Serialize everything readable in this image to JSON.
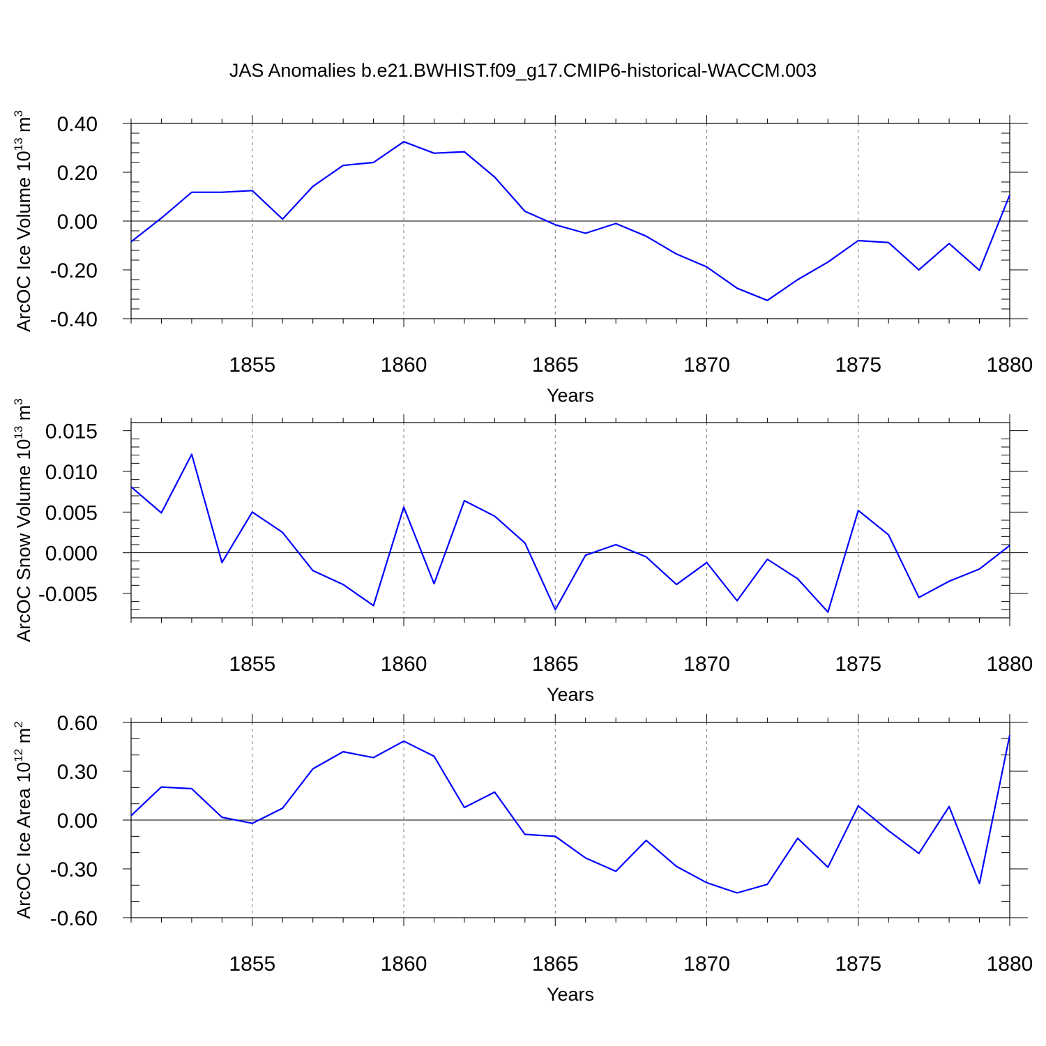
{
  "figure": {
    "title": "JAS Anomalies b.e21.BWHIST.f09_g17.CMIP6-historical-WACCM.003"
  },
  "colors": {
    "series": "#0000ff",
    "axis": "#000000",
    "grid": "#777777"
  },
  "chart_data": [
    {
      "type": "line",
      "xlabel": "Years",
      "ylabel": "ArcOC Ice Volume 10",
      "ylabel_sup": "13",
      "ylabel_unit": " m",
      "ylabel_unit_sup": "3",
      "xlim": [
        1851,
        1880
      ],
      "ylim": [
        -0.4,
        0.4
      ],
      "x_ticks": [
        1855,
        1860,
        1865,
        1870,
        1875,
        1880
      ],
      "x_tick_labels": [
        "1855",
        "1860",
        "1865",
        "1870",
        "1875",
        "1880"
      ],
      "y_ticks": [
        -0.4,
        -0.2,
        0.0,
        0.2,
        0.4
      ],
      "y_tick_labels": [
        "-0.40",
        "-0.20",
        "0.00",
        "0.20",
        "0.40"
      ],
      "y_minor_step": 0.04,
      "grid": "dashed vertical at major x ticks",
      "x": [
        1851,
        1852,
        1853,
        1854,
        1855,
        1856,
        1857,
        1858,
        1859,
        1860,
        1861,
        1862,
        1863,
        1864,
        1865,
        1866,
        1867,
        1868,
        1869,
        1870,
        1871,
        1872,
        1873,
        1874,
        1875,
        1876,
        1877,
        1878,
        1879,
        1880
      ],
      "series": [
        {
          "values": [
            -0.085,
            0.012,
            0.118,
            0.118,
            0.125,
            0.008,
            0.142,
            0.228,
            0.24,
            0.325,
            0.278,
            0.284,
            0.18,
            0.04,
            -0.015,
            -0.05,
            -0.01,
            -0.062,
            -0.135,
            -0.188,
            -0.275,
            -0.325,
            -0.24,
            -0.168,
            -0.08,
            -0.088,
            -0.2,
            -0.092,
            -0.202,
            0.107
          ]
        }
      ]
    },
    {
      "type": "line",
      "xlabel": "Years",
      "ylabel": "ArcOC Snow Volume 10",
      "ylabel_sup": "13",
      "ylabel_unit": " m",
      "ylabel_unit_sup": "3",
      "xlim": [
        1851,
        1880
      ],
      "ylim": [
        -0.008,
        0.016
      ],
      "x_ticks": [
        1855,
        1860,
        1865,
        1870,
        1875,
        1880
      ],
      "x_tick_labels": [
        "1855",
        "1860",
        "1865",
        "1870",
        "1875",
        "1880"
      ],
      "y_ticks": [
        -0.005,
        0.0,
        0.005,
        0.01,
        0.015
      ],
      "y_tick_labels": [
        "-0.005",
        "0.000",
        "0.005",
        "0.010",
        "0.015"
      ],
      "y_minor_step": 0.001,
      "grid": "dashed vertical at major x ticks",
      "x": [
        1851,
        1852,
        1853,
        1854,
        1855,
        1856,
        1857,
        1858,
        1859,
        1860,
        1861,
        1862,
        1863,
        1864,
        1865,
        1866,
        1867,
        1868,
        1869,
        1870,
        1871,
        1872,
        1873,
        1874,
        1875,
        1876,
        1877,
        1878,
        1879,
        1880
      ],
      "series": [
        {
          "values": [
            0.0081,
            0.0049,
            0.0121,
            -0.0012,
            0.005,
            0.0025,
            -0.0022,
            -0.0039,
            -0.0065,
            0.0056,
            -0.0038,
            0.0064,
            0.0045,
            0.0012,
            -0.007,
            -0.0003,
            0.001,
            -0.0005,
            -0.0039,
            -0.0012,
            -0.0059,
            -0.0008,
            -0.0032,
            -0.0073,
            0.0052,
            0.0022,
            -0.0055,
            -0.0035,
            -0.002,
            0.0009
          ]
        }
      ]
    },
    {
      "type": "line",
      "xlabel": "Years",
      "ylabel": "ArcOC Ice Area 10",
      "ylabel_sup": "12",
      "ylabel_unit": " m",
      "ylabel_unit_sup": "2",
      "xlim": [
        1851,
        1880
      ],
      "ylim": [
        -0.6,
        0.6
      ],
      "x_ticks": [
        1855,
        1860,
        1865,
        1870,
        1875,
        1880
      ],
      "x_tick_labels": [
        "1855",
        "1860",
        "1865",
        "1870",
        "1875",
        "1880"
      ],
      "y_ticks": [
        -0.6,
        -0.3,
        0.0,
        0.3,
        0.6
      ],
      "y_tick_labels": [
        "-0.60",
        "-0.30",
        "0.00",
        "0.30",
        "0.60"
      ],
      "y_minor_step": 0.1,
      "grid": "dashed vertical at major x ticks",
      "x": [
        1851,
        1852,
        1853,
        1854,
        1855,
        1856,
        1857,
        1858,
        1859,
        1860,
        1861,
        1862,
        1863,
        1864,
        1865,
        1866,
        1867,
        1868,
        1869,
        1870,
        1871,
        1872,
        1873,
        1874,
        1875,
        1876,
        1877,
        1878,
        1879,
        1880
      ],
      "series": [
        {
          "values": [
            0.027,
            0.203,
            0.193,
            0.017,
            -0.02,
            0.073,
            0.315,
            0.42,
            0.384,
            0.485,
            0.392,
            0.077,
            0.172,
            -0.088,
            -0.1,
            -0.233,
            -0.315,
            -0.125,
            -0.285,
            -0.385,
            -0.448,
            -0.395,
            -0.112,
            -0.29,
            0.087,
            -0.065,
            -0.205,
            0.083,
            -0.39,
            0.522
          ]
        }
      ]
    }
  ]
}
